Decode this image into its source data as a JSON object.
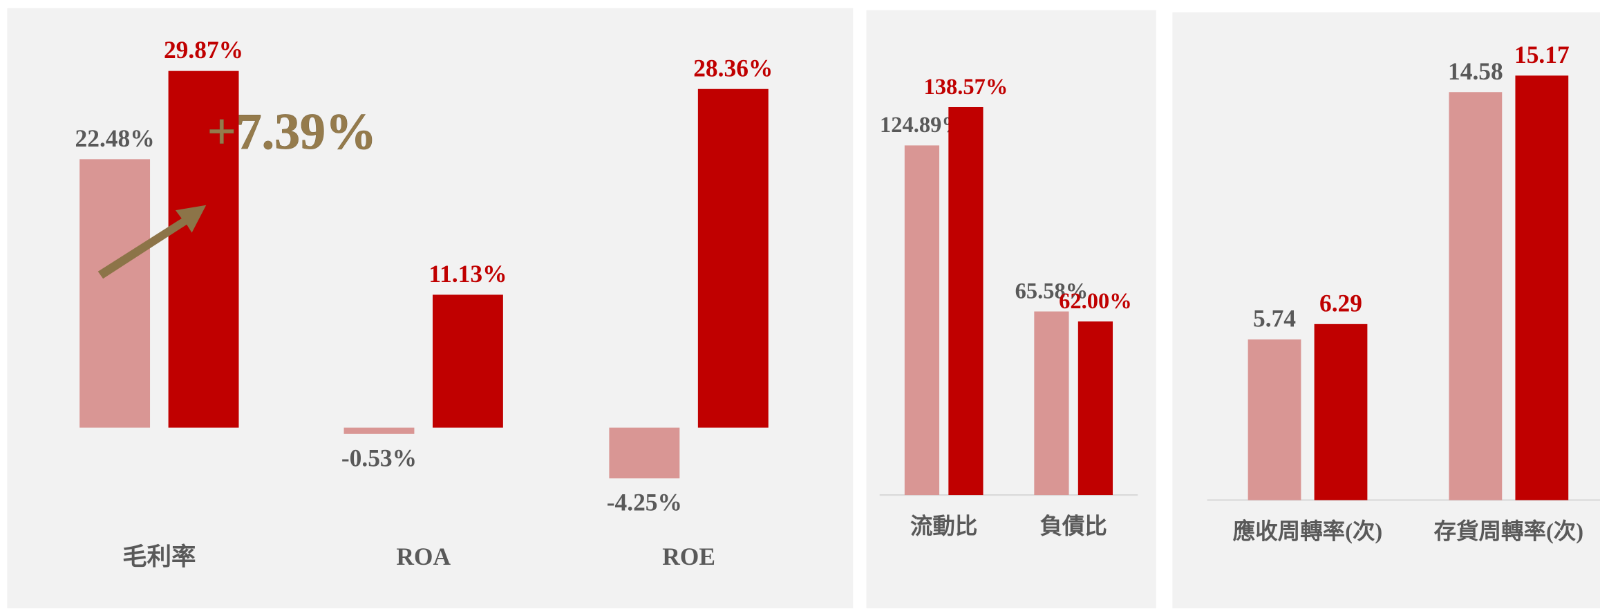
{
  "chart_data": [
    {
      "type": "bar",
      "categories": [
        "毛利率",
        "ROA",
        "ROE"
      ],
      "ylim": [
        -10,
        35
      ],
      "annotation": "+7.39%",
      "series": [
        {
          "color": "#d99694",
          "values": [
            22.48,
            -0.53,
            -4.25
          ],
          "value_labels": [
            "22.48%",
            "-0.53%",
            "-4.25%"
          ]
        },
        {
          "color": "#c00000",
          "values": [
            29.87,
            11.13,
            28.36
          ],
          "value_labels": [
            "29.87%",
            "11.13%",
            "28.36%"
          ]
        }
      ]
    },
    {
      "type": "bar",
      "categories": [
        "流動比",
        "負債比"
      ],
      "ylim": [
        0,
        160
      ],
      "series": [
        {
          "color": "#d99694",
          "values": [
            124.89,
            65.58
          ],
          "value_labels": [
            "124.89%",
            "65.58%"
          ]
        },
        {
          "color": "#c00000",
          "values": [
            138.57,
            62
          ],
          "value_labels": [
            "138.57%",
            "62.00%"
          ]
        }
      ]
    },
    {
      "type": "bar",
      "categories": [
        "應收周轉率(次)",
        "存貨周轉率(次)"
      ],
      "ylim": [
        0,
        16
      ],
      "series": [
        {
          "color": "#d99694",
          "values": [
            5.74,
            14.58
          ]
        },
        {
          "color": "#c00000",
          "values": [
            6.29,
            15.17
          ]
        }
      ]
    }
  ]
}
